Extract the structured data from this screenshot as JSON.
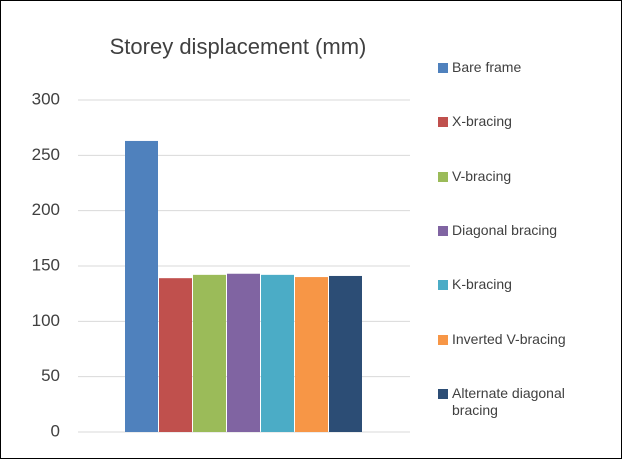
{
  "chart_data": {
    "type": "bar",
    "title": "Storey displacement (mm)",
    "categories": [
      null
    ],
    "series": [
      {
        "name": "Bare frame",
        "color": "#4f81bd",
        "values": [
          263
        ]
      },
      {
        "name": "X-bracing",
        "color": "#c0504d",
        "values": [
          139
        ]
      },
      {
        "name": "V-bracing",
        "color": "#9bbb59",
        "values": [
          142
        ]
      },
      {
        "name": "Diagonal bracing",
        "color": "#8064a2",
        "values": [
          143
        ]
      },
      {
        "name": "K-bracing",
        "color": "#4bacc6",
        "values": [
          142
        ]
      },
      {
        "name": "Inverted V-bracing",
        "color": "#f79646",
        "values": [
          140
        ]
      },
      {
        "name": "Alternate diagonal bracing",
        "color": "#2c4d75",
        "values": [
          141
        ]
      }
    ],
    "ylim": [
      0,
      300
    ],
    "yticks": [
      0,
      50,
      100,
      150,
      200,
      250,
      300
    ],
    "grid": true,
    "legend": "right"
  }
}
